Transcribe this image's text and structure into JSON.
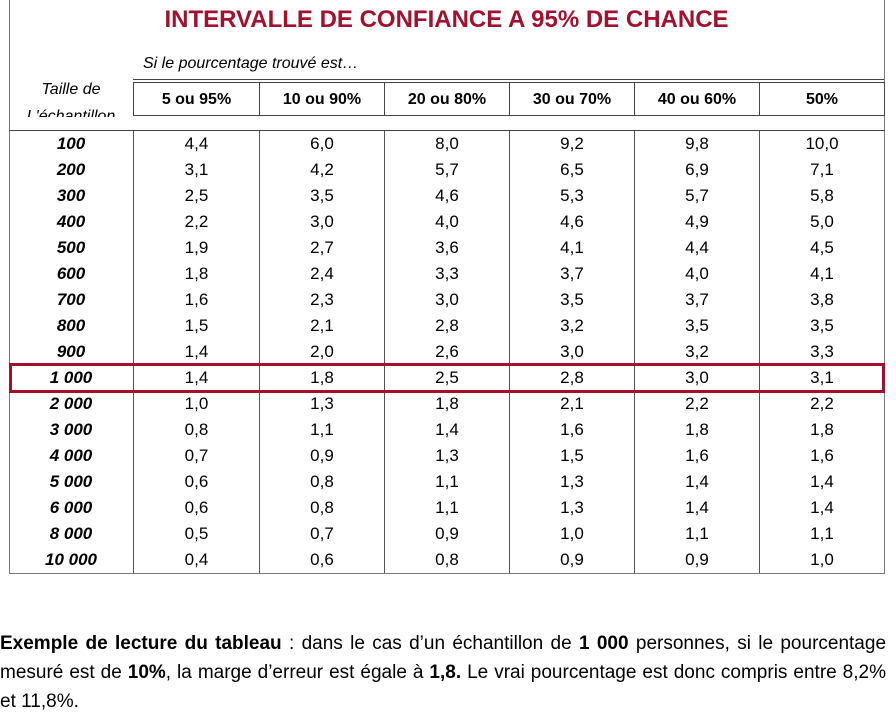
{
  "header": {
    "title": "INTERVALLE DE CONFIANCE A 95% DE CHANCE",
    "subtitle": "Si le pourcentage trouvé est…"
  },
  "table": {
    "row_header": [
      "Taille de",
      "L'échantillon"
    ],
    "columns": [
      "5 ou 95%",
      "10 ou 90%",
      "20 ou 80%",
      "30 ou 70%",
      "40 ou 60%",
      "50%"
    ],
    "rows": [
      [
        "100",
        "4,4",
        "6,0",
        "8,0",
        "9,2",
        "9,8",
        "10,0"
      ],
      [
        "200",
        "3,1",
        "4,2",
        "5,7",
        "6,5",
        "6,9",
        "7,1"
      ],
      [
        "300",
        "2,5",
        "3,5",
        "4,6",
        "5,3",
        "5,7",
        "5,8"
      ],
      [
        "400",
        "2,2",
        "3,0",
        "4,0",
        "4,6",
        "4,9",
        "5,0"
      ],
      [
        "500",
        "1,9",
        "2,7",
        "3,6",
        "4,1",
        "4,4",
        "4,5"
      ],
      [
        "600",
        "1,8",
        "2,4",
        "3,3",
        "3,7",
        "4,0",
        "4,1"
      ],
      [
        "700",
        "1,6",
        "2,3",
        "3,0",
        "3,5",
        "3,7",
        "3,8"
      ],
      [
        "800",
        "1,5",
        "2,1",
        "2,8",
        "3,2",
        "3,5",
        "3,5"
      ],
      [
        "900",
        "1,4",
        "2,0",
        "2,6",
        "3,0",
        "3,2",
        "3,3"
      ],
      [
        "1 000",
        "1,4",
        "1,8",
        "2,5",
        "2,8",
        "3,0",
        "3,1"
      ],
      [
        "2 000",
        "1,0",
        "1,3",
        "1,8",
        "2,1",
        "2,2",
        "2,2"
      ],
      [
        "3 000",
        "0,8",
        "1,1",
        "1,4",
        "1,6",
        "1,8",
        "1,8"
      ],
      [
        "4 000",
        "0,7",
        "0,9",
        "1,3",
        "1,5",
        "1,6",
        "1,6"
      ],
      [
        "5 000",
        "0,6",
        "0,8",
        "1,1",
        "1,3",
        "1,4",
        "1,4"
      ],
      [
        "6 000",
        "0,6",
        "0,8",
        "1,1",
        "1,3",
        "1,4",
        "1,4"
      ],
      [
        "8 000",
        "0,5",
        "0,7",
        "0,9",
        "1,0",
        "1,1",
        "1,1"
      ],
      [
        "10 000",
        "0,4",
        "0,6",
        "0,8",
        "0,9",
        "0,9",
        "1,0"
      ]
    ],
    "highlighted_row": 9
  },
  "note": {
    "segments": [
      "Exemple de lecture du tableau",
      " : dans le cas d’un échantillon de ",
      "1 000",
      " personnes, si le pourcentage mesuré est de ",
      "10%",
      ", la marge d’erreur est égale à ",
      "1,8.",
      " Le vrai pourcentage est donc compris entre 8,2% et 11,8%."
    ]
  }
}
